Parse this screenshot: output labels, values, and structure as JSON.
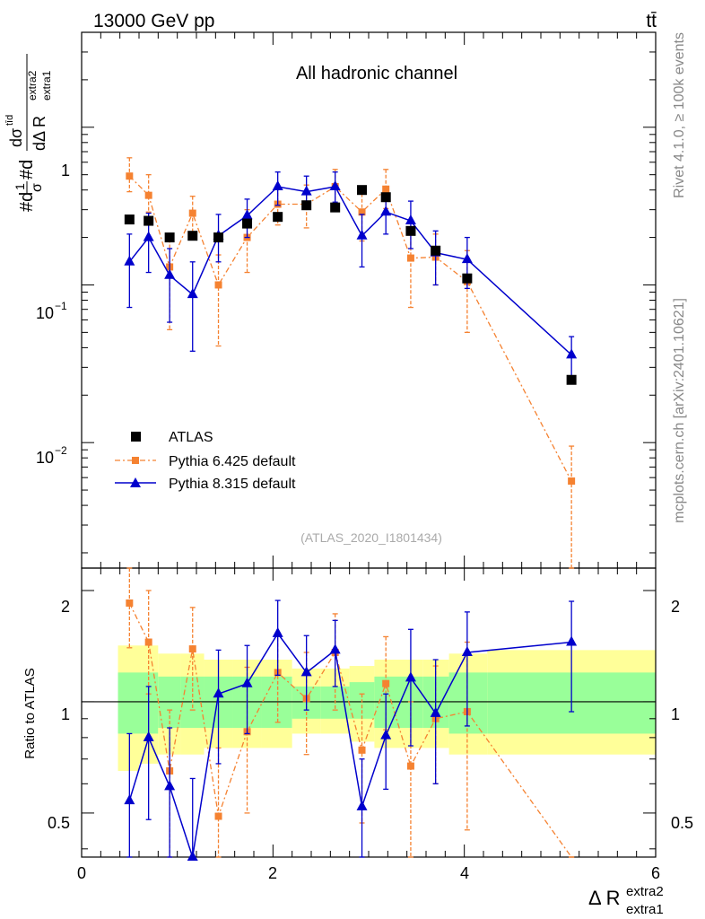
{
  "header": {
    "energy_label": "13000 GeV pp",
    "process_label": "tt̄",
    "channel_title": "All hadronic channel",
    "side_label_rivet": "Rivet 4.1.0, ≥ 100k events",
    "side_label_site": "mcplots.cern.ch [arXiv:2401.10621]",
    "watermark": "(ATLAS_2020_I1801434)"
  },
  "axes": {
    "y_top_label_parts": [
      "#d",
      "1",
      "σ",
      "#d",
      "dσ",
      "tīd",
      "dΔ R",
      "extra1",
      "extra2"
    ],
    "y_bottom_label": "Ratio to ATLAS",
    "x_label_main": "Δ R",
    "x_label_sup": "extra2",
    "x_label_sub": "extra1",
    "x_ticks": [
      "0",
      "2",
      "4",
      "6"
    ],
    "top_ticks": {
      "t1": "1",
      "t01_base": "10",
      "t01_exp": "−1",
      "t001_base": "10",
      "t001_exp": "−2"
    },
    "bottom_ticks": [
      "2",
      "1",
      "0.5"
    ],
    "bottom_ticks_right": [
      "2",
      "1",
      "0.5"
    ]
  },
  "legend": {
    "atlas": "ATLAS",
    "py6": "Pythia 6.425 default",
    "py8": "Pythia 8.315 default"
  },
  "colors": {
    "atlas": "#000000",
    "py6": "#f58231",
    "py8": "#0000cc",
    "band_inner": "#99ff99",
    "band_outer": "#ffff99",
    "axis": "#000000",
    "side_text": "#888888"
  },
  "chart_data": {
    "type": "scatter",
    "xlim": [
      0,
      6
    ],
    "top_ylim": [
      0.0016,
      4
    ],
    "top_yscale": "log",
    "ratio_ylim": [
      0.38,
      2.3
    ],
    "ratio_yscale": "log",
    "bins": [
      {
        "x": 0.5,
        "lo": 0.38,
        "hi": 0.6
      },
      {
        "x": 0.7,
        "lo": 0.6,
        "hi": 0.8
      },
      {
        "x": 0.92,
        "lo": 0.8,
        "hi": 1.04
      },
      {
        "x": 1.16,
        "lo": 1.04,
        "hi": 1.28
      },
      {
        "x": 1.43,
        "lo": 1.28,
        "hi": 1.58
      },
      {
        "x": 1.73,
        "lo": 1.58,
        "hi": 1.88
      },
      {
        "x": 2.05,
        "lo": 1.88,
        "hi": 2.2
      },
      {
        "x": 2.35,
        "lo": 2.2,
        "hi": 2.5
      },
      {
        "x": 2.65,
        "lo": 2.5,
        "hi": 2.8
      },
      {
        "x": 2.93,
        "lo": 2.8,
        "hi": 3.06
      },
      {
        "x": 3.18,
        "lo": 3.06,
        "hi": 3.3
      },
      {
        "x": 3.44,
        "lo": 3.3,
        "hi": 3.57
      },
      {
        "x": 3.7,
        "lo": 3.57,
        "hi": 3.84
      },
      {
        "x": 4.03,
        "lo": 3.84,
        "hi": 4.24
      },
      {
        "x": 5.12,
        "lo": 4.24,
        "hi": 6.0
      }
    ],
    "series": [
      {
        "name": "ATLAS",
        "values": [
          0.26,
          0.255,
          0.2,
          0.205,
          0.2,
          0.245,
          0.27,
          0.32,
          0.31,
          0.4,
          0.36,
          0.22,
          0.165,
          0.11,
          0.025
        ]
      },
      {
        "name": "Pythia 6.425 default",
        "values": [
          0.49,
          0.37,
          0.13,
          0.285,
          0.1,
          0.2,
          0.325,
          0.325,
          0.42,
          0.29,
          0.405,
          0.148,
          0.15,
          0.105,
          0.0057
        ],
        "err_lo": [
          0.39,
          0.29,
          0.052,
          0.205,
          0.041,
          0.12,
          0.24,
          0.23,
          0.3,
          0.19,
          0.305,
          0.072,
          0.1,
          0.05,
          0.0
        ],
        "err_hi": [
          0.64,
          0.5,
          0.195,
          0.365,
          0.155,
          0.3,
          0.415,
          0.43,
          0.54,
          0.41,
          0.54,
          0.22,
          0.21,
          0.165,
          0.0095
        ]
      },
      {
        "name": "Pythia 8.315 default",
        "values": [
          0.14,
          0.2,
          0.115,
          0.087,
          0.205,
          0.275,
          0.42,
          0.39,
          0.42,
          0.205,
          0.29,
          0.255,
          0.16,
          0.145,
          0.036
        ],
        "err_lo": [
          0.072,
          0.12,
          0.058,
          0.038,
          0.14,
          0.2,
          0.32,
          0.305,
          0.335,
          0.13,
          0.21,
          0.17,
          0.1,
          0.095,
          0.025
        ],
        "err_hi": [
          0.21,
          0.285,
          0.17,
          0.14,
          0.28,
          0.35,
          0.52,
          0.49,
          0.52,
          0.28,
          0.38,
          0.34,
          0.22,
          0.2,
          0.047
        ]
      }
    ],
    "ratio": {
      "band_inner": [
        [
          0.82,
          1.2
        ],
        [
          0.82,
          1.2
        ],
        [
          0.85,
          1.17
        ],
        [
          0.85,
          1.17
        ],
        [
          0.85,
          1.17
        ],
        [
          0.85,
          1.17
        ],
        [
          0.85,
          1.17
        ],
        [
          0.9,
          1.1
        ],
        [
          0.9,
          1.1
        ],
        [
          0.9,
          1.13
        ],
        [
          0.85,
          1.17
        ],
        [
          0.85,
          1.17
        ],
        [
          0.85,
          1.17
        ],
        [
          0.82,
          1.2
        ],
        [
          0.82,
          1.2
        ]
      ],
      "band_outer": [
        [
          0.65,
          1.42
        ],
        [
          0.68,
          1.42
        ],
        [
          0.72,
          1.35
        ],
        [
          0.72,
          1.35
        ],
        [
          0.75,
          1.3
        ],
        [
          0.75,
          1.3
        ],
        [
          0.75,
          1.3
        ],
        [
          0.82,
          1.23
        ],
        [
          0.82,
          1.23
        ],
        [
          0.78,
          1.25
        ],
        [
          0.75,
          1.3
        ],
        [
          0.75,
          1.3
        ],
        [
          0.75,
          1.3
        ],
        [
          0.72,
          1.35
        ],
        [
          0.72,
          1.38
        ]
      ],
      "py6": [
        1.85,
        1.45,
        0.65,
        1.39,
        0.49,
        0.83,
        1.2,
        1.02,
        1.36,
        0.74,
        1.12,
        0.67,
        0.9,
        0.94,
        0.23
      ],
      "py6_err_lo": [
        1.4,
        1.05,
        0.26,
        0.95,
        0.2,
        0.5,
        0.88,
        0.72,
        0.95,
        0.47,
        0.84,
        0.33,
        0.6,
        0.45,
        0.0
      ],
      "py6_err_hi": [
        2.45,
        2.0,
        0.95,
        1.8,
        0.75,
        1.24,
        1.54,
        1.36,
        1.73,
        1.05,
        1.5,
        1.0,
        1.25,
        1.45,
        0.38
      ],
      "py8": [
        0.54,
        0.8,
        0.59,
        0.38,
        1.05,
        1.12,
        1.53,
        1.2,
        1.38,
        0.52,
        0.81,
        1.16,
        0.93,
        1.36,
        1.45
      ],
      "py8_err_lo": [
        0.28,
        0.48,
        0.3,
        0.16,
        0.68,
        0.82,
        1.18,
        0.95,
        1.1,
        0.33,
        0.58,
        0.76,
        0.6,
        0.86,
        0.94
      ],
      "py8_err_hi": [
        0.82,
        1.1,
        0.85,
        0.62,
        1.38,
        1.42,
        1.88,
        1.51,
        1.66,
        0.7,
        1.05,
        1.57,
        1.3,
        1.75,
        1.87
      ]
    }
  }
}
